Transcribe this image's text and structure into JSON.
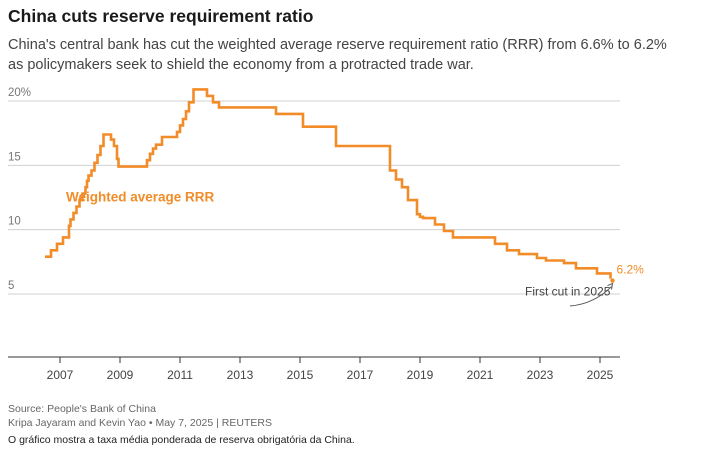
{
  "header": {
    "title": "China cuts reserve requirement ratio",
    "subtitle": "China's central bank has cut the weighted average reserve requirement ratio (RRR) from 6.6% to 6.2% as policymakers seek to shield the economy from a protracted trade war."
  },
  "footer": {
    "source": "Source: People's Bank of China",
    "credit": "Kripa Jayaram and Kevin Yao • May 7, 2025 | REUTERS",
    "caption": "O gráfico mostra a taxa média ponderada de reserva obrigatória da China."
  },
  "chart_data": {
    "type": "line",
    "title": "China cuts reserve requirement ratio",
    "xlabel": "",
    "ylabel": "",
    "xlim": [
      2006.0,
      2025.75
    ],
    "ylim": [
      0,
      22
    ],
    "y_ticks": [
      {
        "value": 20,
        "label": "20%"
      },
      {
        "value": 15,
        "label": "15"
      },
      {
        "value": 10,
        "label": "10"
      },
      {
        "value": 5,
        "label": "5"
      }
    ],
    "x_ticks": [
      2007,
      2009,
      2011,
      2013,
      2015,
      2017,
      2019,
      2021,
      2023,
      2025
    ],
    "grid": true,
    "line_color": "#f28c28",
    "series": [
      {
        "name": "Weighted average RRR",
        "step": true,
        "x": [
          2006.5,
          2006.7,
          2006.9,
          2007.1,
          2007.3,
          2007.35,
          2007.45,
          2007.55,
          2007.65,
          2007.75,
          2007.85,
          2007.9,
          2007.95,
          2008.05,
          2008.15,
          2008.25,
          2008.35,
          2008.45,
          2008.7,
          2008.8,
          2008.9,
          2008.95,
          2009.9,
          2010.0,
          2010.1,
          2010.2,
          2010.4,
          2010.9,
          2011.0,
          2011.1,
          2011.2,
          2011.3,
          2011.45,
          2011.9,
          2012.1,
          2012.3,
          2014.2,
          2015.1,
          2015.3,
          2016.2,
          2018.0,
          2018.2,
          2018.4,
          2018.6,
          2018.9,
          2019.0,
          2019.1,
          2019.5,
          2019.8,
          2020.1,
          2020.3,
          2021.5,
          2021.9,
          2022.3,
          2022.9,
          2023.2,
          2023.8,
          2024.2,
          2024.9,
          2025.35
        ],
        "values": [
          7.9,
          8.4,
          8.9,
          9.4,
          10.3,
          10.8,
          11.3,
          11.8,
          12.3,
          12.8,
          13.3,
          13.8,
          14.2,
          14.6,
          15.2,
          15.8,
          16.5,
          17.4,
          17.0,
          16.5,
          15.5,
          14.9,
          15.4,
          15.9,
          16.3,
          16.6,
          17.2,
          17.6,
          18.1,
          18.6,
          19.2,
          19.9,
          20.9,
          20.4,
          19.9,
          19.5,
          19.0,
          18.0,
          18.0,
          16.5,
          14.6,
          13.9,
          13.3,
          12.3,
          11.2,
          11.0,
          10.9,
          10.4,
          9.9,
          9.4,
          9.4,
          8.9,
          8.4,
          8.1,
          7.8,
          7.6,
          7.4,
          7.0,
          6.6,
          6.2
        ]
      }
    ],
    "annotations": [
      {
        "text": "Weighted average RRR",
        "x": 2007.2,
        "y": 12.2,
        "color": "#f28c28",
        "bold": true
      },
      {
        "text": "6.2%",
        "x": 2025.55,
        "y": 6.6,
        "color": "#f28c28",
        "bold": false
      },
      {
        "text": "First cut in 2025",
        "x": 2022.5,
        "y": 4.9,
        "color": "#444444",
        "bold": false
      }
    ]
  }
}
